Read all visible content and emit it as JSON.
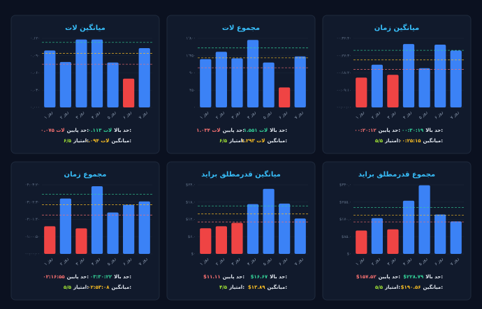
{
  "chart_data": [
    {
      "type": "bar",
      "title": "میانگین زمان",
      "categories": [
        "روز ۱",
        "روز ۲",
        "روز ۳",
        "روز ۴",
        "روز ۵",
        "روز ۶",
        "روز ۷"
      ],
      "values": [
        950,
        1360,
        1040,
        2020,
        1250,
        2000,
        1810
      ],
      "colors": [
        "#ef4444",
        "#3b82f6",
        "#ef4444",
        "#3b82f6",
        "#3b82f6",
        "#3b82f6",
        "#3b82f6"
      ],
      "ylim": [
        0,
        2200
      ],
      "yticks": [
        {
          "value": 0,
          "label": "۰۰:۰۰:۰۰"
        },
        {
          "value": 550,
          "label": "۰۰:۰۹:۱۰"
        },
        {
          "value": 1100,
          "label": "۰۰:۱۸:۲۰"
        },
        {
          "value": 1650,
          "label": "۰۰:۲۷:۳۰"
        },
        {
          "value": 2200,
          "label": "۰۰:۳۶:۴۰"
        }
      ],
      "thresholds": [
        {
          "name": "حد بالا:",
          "value": 1819,
          "label": "۰۰:۳۰:۱۹",
          "color": "#34d399"
        },
        {
          "name": "حد پایین:",
          "value": 1212,
          "label": "۰۰:۲۰:۱۲",
          "color": "#f87171"
        },
        {
          "name": "میانگین:",
          "value": 1515,
          "label": "۰۰:۲۵:۱۵",
          "color": "#fbbf24"
        }
      ],
      "score_label": "امتیاز:",
      "score": "۵/۵",
      "score_color": "#a3e635"
    },
    {
      "type": "bar",
      "title": "مجموع لات",
      "categories": [
        "روز ۱",
        "روز ۲",
        "روز ۳",
        "روز ۴",
        "روز ۵",
        "روز ۶",
        "روز ۷"
      ],
      "values": [
        1260,
        1450,
        1280,
        1760,
        1170,
        520,
        1330
      ],
      "colors": [
        "#3b82f6",
        "#3b82f6",
        "#3b82f6",
        "#3b82f6",
        "#3b82f6",
        "#ef4444",
        "#3b82f6"
      ],
      "ylim": [
        0,
        1800
      ],
      "yticks": [
        {
          "value": 0,
          "label": "۰"
        },
        {
          "value": 450,
          "label": "۴۵۰"
        },
        {
          "value": 900,
          "label": "۹۰۰"
        },
        {
          "value": 1350,
          "label": "۱٬۳۵۰"
        },
        {
          "value": 1800,
          "label": "۱٬۸۰۰"
        }
      ],
      "thresholds": [
        {
          "name": "حد بالا:",
          "value": 1551,
          "label": "۱.۵۵۱ لات",
          "color": "#34d399"
        },
        {
          "name": "حد پایین:",
          "value": 1034,
          "label": "۱.۰۳۴ لات",
          "color": "#f87171"
        },
        {
          "name": "میانگین:",
          "value": 1293,
          "label": "۱.۲۹۳ لات",
          "color": "#fbbf24"
        }
      ],
      "score_label": "امتیاز:",
      "score": "۶/۵",
      "score_color": "#a3e635"
    },
    {
      "type": "bar",
      "title": "میانگین لات",
      "categories": [
        "روز ۱",
        "روز ۲",
        "روز ۳",
        "روز ۴",
        "روز ۵",
        "روز ۶",
        "روز ۷"
      ],
      "values": [
        0.099,
        0.079,
        0.118,
        0.118,
        0.078,
        0.05,
        0.103
      ],
      "colors": [
        "#3b82f6",
        "#3b82f6",
        "#3b82f6",
        "#3b82f6",
        "#3b82f6",
        "#ef4444",
        "#3b82f6"
      ],
      "ylim": [
        0,
        0.12
      ],
      "yticks": [
        {
          "value": 0,
          "label": "۰.۰۰۰"
        },
        {
          "value": 0.03,
          "label": "۰.۰۳۰"
        },
        {
          "value": 0.06,
          "label": "۰.۰۶۰"
        },
        {
          "value": 0.09,
          "label": "۰.۰۹۰"
        },
        {
          "value": 0.12,
          "label": "۰.۱۲۰"
        }
      ],
      "thresholds": [
        {
          "name": "حد بالا:",
          "value": 0.113,
          "label": "۰.۱۱۳ لات",
          "color": "#34d399"
        },
        {
          "name": "حد پایین:",
          "value": 0.075,
          "label": "۰.۰۷۵ لات",
          "color": "#f87171"
        },
        {
          "name": "میانگین:",
          "value": 0.094,
          "label": "۰.۰۹۴ لات",
          "color": "#fbbf24"
        }
      ],
      "score_label": "امتیاز:",
      "score": "۶/۵",
      "score_color": "#a3e635"
    },
    {
      "type": "bar",
      "title": "مجموع قدرمطلق براید",
      "categories": [
        "روز ۱",
        "روز ۲",
        "روز ۳",
        "روز ۴",
        "روز ۵",
        "روز ۶",
        "روز ۷"
      ],
      "values": [
        115,
        176,
        121,
        262,
        338,
        194,
        160
      ],
      "colors": [
        "#ef4444",
        "#3b82f6",
        "#ef4444",
        "#3b82f6",
        "#3b82f6",
        "#3b82f6",
        "#3b82f6"
      ],
      "ylim": [
        0,
        340
      ],
      "yticks": [
        {
          "value": 0,
          "label": "$۰"
        },
        {
          "value": 85,
          "label": "$۸۵.۰"
        },
        {
          "value": 170,
          "label": "$۱۷۰.۰"
        },
        {
          "value": 255,
          "label": "$۲۵۵.۰"
        },
        {
          "value": 340,
          "label": "$۳۴۰.۰"
        }
      ],
      "thresholds": [
        {
          "name": "حد بالا:",
          "value": 228.79,
          "label": "$۲۲۸.۷۹",
          "color": "#34d399"
        },
        {
          "name": "حد پایین:",
          "value": 157.52,
          "label": "$۱۵۷.۵۲",
          "color": "#f87171"
        },
        {
          "name": "میانگین:",
          "value": 190.56,
          "label": "$۱۹۰.۵۶",
          "color": "#fbbf24"
        }
      ],
      "score_label": "امتیاز:",
      "score": "۵/۵",
      "score_color": "#a3e635"
    },
    {
      "type": "bar",
      "title": "میانگین قدرمطلق براید",
      "categories": [
        "روز ۱",
        "روز ۲",
        "روز ۳",
        "روز ۴",
        "روز ۵",
        "روز ۶",
        "روز ۷"
      ],
      "values": [
        8.9,
        9.6,
        10.8,
        17.3,
        22.6,
        17.5,
        12.3
      ],
      "colors": [
        "#ef4444",
        "#ef4444",
        "#ef4444",
        "#3b82f6",
        "#3b82f6",
        "#3b82f6",
        "#3b82f6"
      ],
      "ylim": [
        0,
        24
      ],
      "yticks": [
        {
          "value": 0,
          "label": "$۰"
        },
        {
          "value": 6,
          "label": "$۶.۰"
        },
        {
          "value": 12,
          "label": "$۱۲.۰"
        },
        {
          "value": 18,
          "label": "$۱۸.۰"
        },
        {
          "value": 24,
          "label": "$۲۴.۰"
        }
      ],
      "thresholds": [
        {
          "name": "حد بالا:",
          "value": 16.67,
          "label": "$۱۶.۶۷",
          "color": "#34d399"
        },
        {
          "name": "حد پایین:",
          "value": 11.11,
          "label": "$۱۱.۱۱",
          "color": "#f87171"
        },
        {
          "name": "میانگین:",
          "value": 13.89,
          "label": "$۱۳.۸۹",
          "color": "#fbbf24"
        }
      ],
      "score_label": "امتیاز:",
      "score": "۴/۵",
      "score_color": "#a3e635"
    },
    {
      "type": "bar",
      "title": "مجموع زمان",
      "categories": [
        "روز ۱",
        "روز ۲",
        "روز ۳",
        "روز ۴",
        "روز ۵",
        "روز ۶",
        "روز ۷"
      ],
      "values": [
        5840,
        11700,
        5400,
        14300,
        8760,
        10400,
        11100
      ],
      "colors": [
        "#ef4444",
        "#3b82f6",
        "#ef4444",
        "#3b82f6",
        "#3b82f6",
        "#3b82f6",
        "#3b82f6"
      ],
      "ylim": [
        0,
        14600
      ],
      "yticks": [
        {
          "value": 0,
          "label": "۰۰:۰۰:۰۰"
        },
        {
          "value": 3650,
          "label": "۰۱:۰۰:۵۰"
        },
        {
          "value": 7300,
          "label": "۰۲:۰۱:۴۰"
        },
        {
          "value": 10950,
          "label": "۰۳:۰۲:۳۰"
        },
        {
          "value": 14600,
          "label": "۰۴:۰۳:۲۰"
        }
      ],
      "thresholds": [
        {
          "name": "حد بالا:",
          "value": 12622,
          "label": "۰۳:۳۰:۲۲",
          "color": "#34d399"
        },
        {
          "name": "حد پایین:",
          "value": 8215,
          "label": "۰۲:۱۶:۵۵",
          "color": "#f87171"
        },
        {
          "name": "میانگین:",
          "value": 10388,
          "label": "۰۲:۵۳:۰۸",
          "color": "#fbbf24"
        }
      ],
      "score_label": "امتیاز:",
      "score": "۵/۵",
      "score_color": "#a3e635"
    }
  ]
}
